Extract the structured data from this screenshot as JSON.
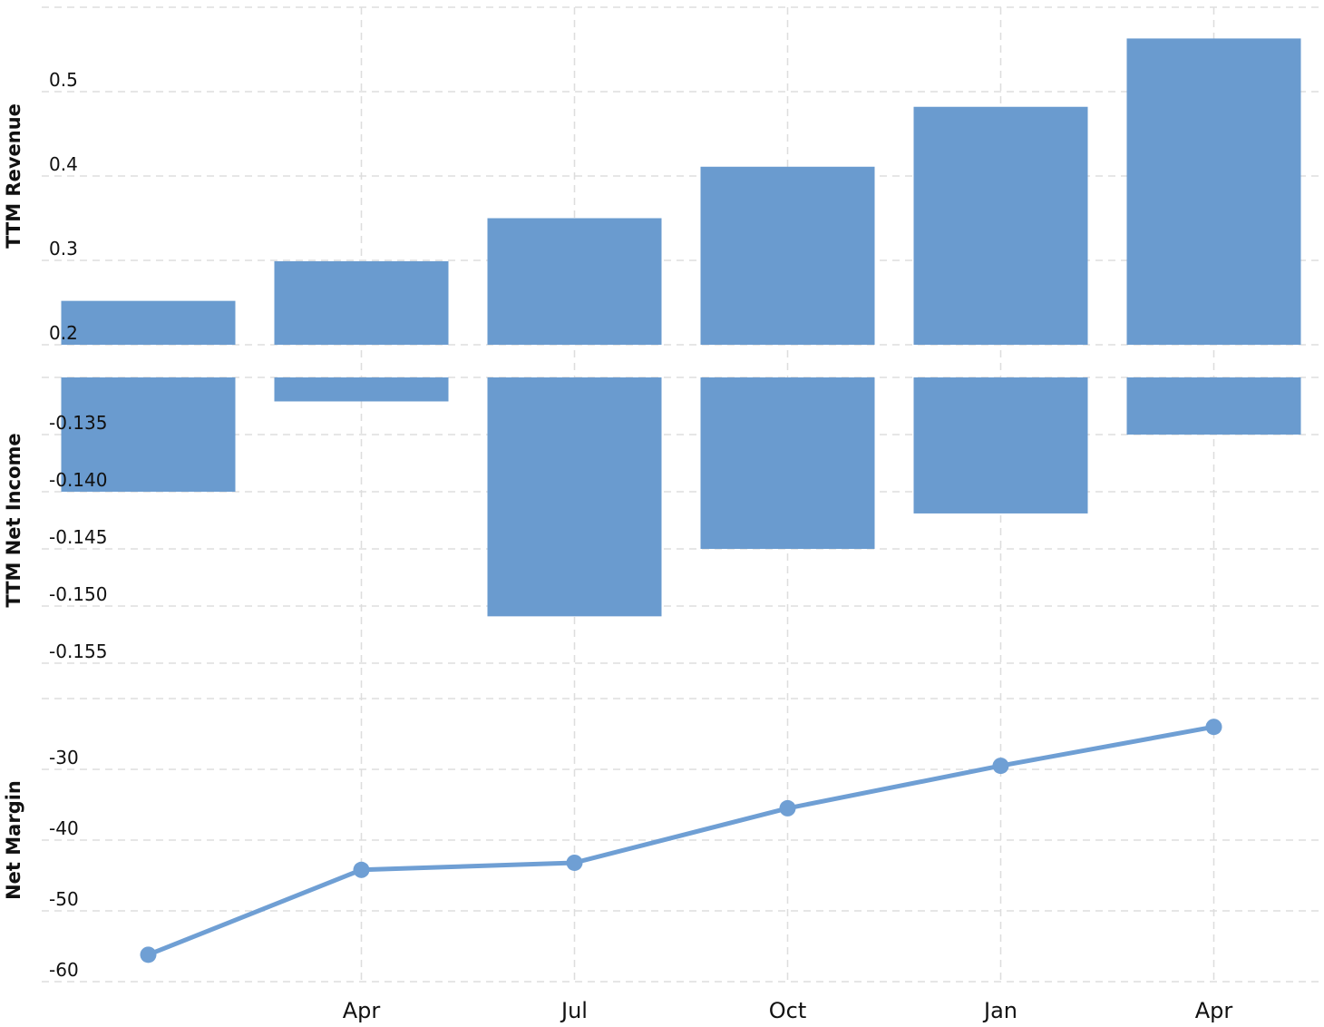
{
  "chart_data": [
    {
      "type": "bar",
      "y_label": "TTM Revenue",
      "color": "#6a9bcf",
      "values": [
        0.252,
        0.299,
        0.35,
        0.411,
        0.482,
        0.563
      ],
      "ylim": [
        0.2,
        0.6
      ],
      "yticks": [
        0.2,
        0.3,
        0.4,
        0.5
      ],
      "grid": true
    },
    {
      "type": "bar",
      "y_label": "TTM Net Income",
      "color": "#6a9bcf",
      "values": [
        -0.14,
        -0.1321,
        -0.1509,
        -0.145,
        -0.1419,
        -0.135
      ],
      "ylim": [
        -0.155,
        -0.13
      ],
      "yticks": [
        -0.135,
        {
          "value": -0.14,
          "label": "-0.140"
        },
        -0.145,
        {
          "value": -0.15,
          "label": "-0.150"
        },
        -0.155
      ],
      "grid": true
    },
    {
      "type": "line",
      "y_label": "Net Margin",
      "color": "#6f9fd4",
      "categories": [
        null,
        "Apr",
        "Jul",
        "Oct",
        "Jan",
        "Apr"
      ],
      "values": [
        -56.2,
        -44.2,
        -43.2,
        -35.5,
        -29.5,
        -24.0
      ],
      "ylim": [
        -60,
        -20
      ],
      "yticks": [
        -30,
        -40,
        -50,
        -60
      ],
      "grid": true
    }
  ]
}
